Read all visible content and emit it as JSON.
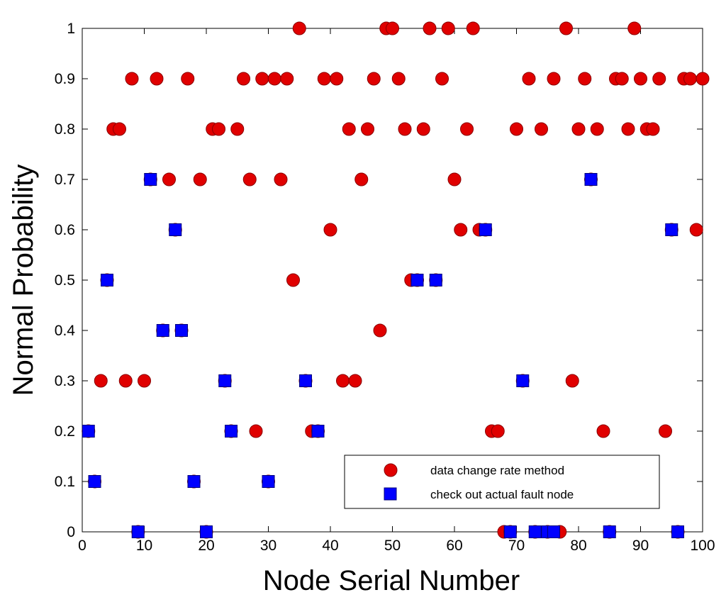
{
  "chart_data": {
    "type": "scatter",
    "title": "",
    "xlabel": "Node Serial Number",
    "ylabel": "Normal Probability",
    "xlim": [
      0,
      100
    ],
    "ylim": [
      0,
      1
    ],
    "x_ticks": [
      "0",
      "10",
      "20",
      "30",
      "40",
      "50",
      "60",
      "70",
      "80",
      "90",
      "100"
    ],
    "y_ticks": [
      "0",
      "0.1",
      "0.2",
      "0.3",
      "0.4",
      "0.5",
      "0.6",
      "0.7",
      "0.8",
      "0.9",
      "1"
    ],
    "grid": false,
    "legend_position": "bottom-right",
    "series": [
      {
        "name": "data change rate method",
        "marker": "circle",
        "color": "#e00000",
        "x": [
          1,
          2,
          3,
          4,
          5,
          6,
          7,
          8,
          9,
          10,
          11,
          12,
          13,
          14,
          15,
          16,
          17,
          18,
          19,
          20,
          21,
          22,
          23,
          24,
          25,
          26,
          27,
          28,
          29,
          30,
          31,
          32,
          33,
          34,
          35,
          36,
          37,
          38,
          39,
          40,
          41,
          42,
          43,
          44,
          45,
          46,
          47,
          48,
          49,
          50,
          51,
          52,
          53,
          54,
          55,
          56,
          57,
          58,
          59,
          60,
          61,
          62,
          63,
          64,
          65,
          66,
          67,
          68,
          69,
          70,
          71,
          72,
          73,
          74,
          75,
          76,
          77,
          78,
          79,
          80,
          81,
          82,
          83,
          84,
          85,
          86,
          87,
          88,
          89,
          90,
          91,
          92,
          93,
          94,
          95,
          96,
          97,
          98,
          99,
          100
        ],
        "y": [
          0.2,
          0.1,
          0.3,
          0.5,
          0.8,
          0.8,
          0.3,
          0.9,
          0,
          0.3,
          0.7,
          0.9,
          0.4,
          0.7,
          0.6,
          0.4,
          0.9,
          0.1,
          0.7,
          0,
          0.8,
          0.8,
          0.3,
          0.2,
          0.8,
          0.9,
          0.7,
          0.2,
          0.9,
          0.1,
          0.9,
          0.7,
          0.9,
          0.5,
          1,
          0.3,
          0.2,
          0.2,
          0.9,
          0.6,
          0.9,
          0.3,
          0.8,
          0.3,
          0.7,
          0.8,
          0.9,
          0.4,
          1,
          1,
          0.9,
          0.8,
          0.5,
          0.5,
          0.8,
          1,
          0.5,
          0.9,
          1,
          0.7,
          0.6,
          0.8,
          1,
          0.6,
          0.6,
          0.2,
          0.2,
          0,
          0,
          0.8,
          0.3,
          0.9,
          0,
          0.8,
          0,
          0.9,
          0,
          1,
          0.3,
          0.8,
          0.9,
          0.7,
          0.8,
          0.2,
          0,
          0.9,
          0.9,
          0.8,
          1,
          0.9,
          0.8,
          0.8,
          0.9,
          0.2,
          0.6,
          0,
          0.9,
          0.9,
          0.6,
          0.9
        ]
      },
      {
        "name": "check out actual fault node",
        "marker": "square",
        "color": "#0000ff",
        "x": [
          1,
          2,
          4,
          9,
          11,
          13,
          15,
          16,
          18,
          20,
          23,
          24,
          30,
          36,
          38,
          54,
          57,
          65,
          69,
          71,
          73,
          75,
          76,
          82,
          85,
          95,
          96
        ],
        "y": [
          0.2,
          0.1,
          0.5,
          0,
          0.7,
          0.4,
          0.6,
          0.4,
          0.1,
          0,
          0.3,
          0.2,
          0.1,
          0.3,
          0.2,
          0.5,
          0.5,
          0.6,
          0,
          0.3,
          0,
          0,
          0,
          0.7,
          0,
          0.6,
          0
        ]
      }
    ]
  }
}
